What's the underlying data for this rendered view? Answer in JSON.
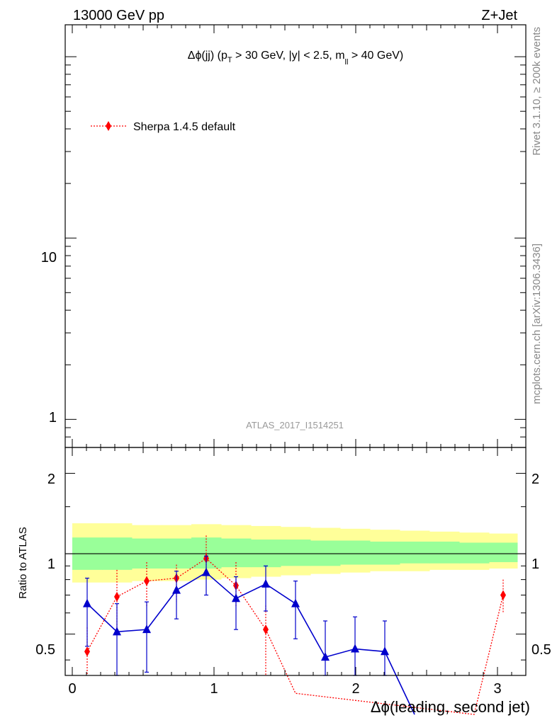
{
  "header": {
    "left": "13000 GeV pp",
    "right": "Z+Jet"
  },
  "side_labels": {
    "rivet": "Rivet 3.1.10, ≥ 200k events",
    "mcplots": "mcplots.cern.ch [arXiv:1306.3436]"
  },
  "main_panel": {
    "title_prefix": "Δϕ(jj) (p",
    "title_sub_T": "T",
    "title_mid": " > 30 GeV, |y| < 2.5, m",
    "title_sub_ll": "ll",
    "title_suffix": " > 40 GeV)",
    "watermark": "ATLAS_2017_I1514251",
    "legend_label": "Sherpa 1.4.5 default",
    "y_ticks": [
      "1",
      "10"
    ]
  },
  "ratio_panel": {
    "ylabel": "Ratio to ATLAS",
    "xlabel": "Δϕ(leading, second jet)",
    "y_ticks_left": [
      "0.5",
      "1",
      "2"
    ],
    "y_ticks_right": [
      "0.5",
      "1",
      "2"
    ],
    "x_ticks": [
      "0",
      "1",
      "2",
      "3"
    ]
  },
  "colors": {
    "sherpa": "#ff0000",
    "blue_series": "#0000cc",
    "band_inner": "#99ff99",
    "band_outer": "#ffff99"
  },
  "chart_data": {
    "type": "line",
    "xlim": [
      -0.05,
      3.2
    ],
    "ratio_ylim": [
      0.35,
      2.5
    ],
    "ratio_scale": "log",
    "main_ylim": [
      0.7,
      150
    ],
    "main_scale": "log",
    "band_edges": [
      0,
      0.21,
      0.42,
      0.63,
      0.84,
      1.05,
      1.26,
      1.47,
      1.68,
      1.89,
      2.1,
      2.31,
      2.52,
      2.73,
      2.94,
      3.14
    ],
    "band_inner": [
      [
        0.87,
        1.15
      ],
      [
        0.87,
        1.15
      ],
      [
        0.88,
        1.14
      ],
      [
        0.88,
        1.14
      ],
      [
        0.88,
        1.15
      ],
      [
        0.89,
        1.14
      ],
      [
        0.89,
        1.13
      ],
      [
        0.9,
        1.13
      ],
      [
        0.9,
        1.12
      ],
      [
        0.91,
        1.12
      ],
      [
        0.91,
        1.11
      ],
      [
        0.92,
        1.11
      ],
      [
        0.92,
        1.11
      ],
      [
        0.92,
        1.1
      ],
      [
        0.93,
        1.1
      ]
    ],
    "band_outer": [
      [
        0.78,
        1.3
      ],
      [
        0.78,
        1.3
      ],
      [
        0.79,
        1.28
      ],
      [
        0.79,
        1.28
      ],
      [
        0.8,
        1.29
      ],
      [
        0.81,
        1.28
      ],
      [
        0.82,
        1.27
      ],
      [
        0.83,
        1.26
      ],
      [
        0.84,
        1.25
      ],
      [
        0.85,
        1.24
      ],
      [
        0.86,
        1.23
      ],
      [
        0.86,
        1.22
      ],
      [
        0.87,
        1.21
      ],
      [
        0.87,
        1.2
      ],
      [
        0.88,
        1.19
      ]
    ],
    "series": [
      {
        "name": "Sherpa 1.4.5 default",
        "x": [
          0.105,
          0.315,
          0.525,
          0.735,
          0.945,
          1.155,
          1.365,
          1.575,
          2.835,
          3.04
        ],
        "y": [
          0.43,
          0.69,
          0.79,
          0.81,
          0.96,
          0.76,
          0.52,
          0.3,
          0.25,
          0.7
        ],
        "err_lo": [
          0.12,
          0.18,
          0.16,
          0.15,
          0.12,
          0.13,
          0.2,
          0.1,
          0.05,
          0.1
        ],
        "err_hi": [
          0.1,
          0.18,
          0.14,
          0.1,
          0.21,
          0.17,
          0.12,
          0.1,
          0.05,
          0.1
        ]
      },
      {
        "x": [
          0.105,
          0.315,
          0.525,
          0.735,
          0.945,
          1.155,
          1.365,
          1.575,
          1.785,
          1.995,
          2.205,
          2.415
        ],
        "y": [
          0.65,
          0.51,
          0.52,
          0.73,
          0.85,
          0.68,
          0.77,
          0.65,
          0.41,
          0.44,
          0.43,
          0.25
        ],
        "err_lo": [
          0.2,
          0.16,
          0.16,
          0.16,
          0.15,
          0.16,
          0.16,
          0.17,
          0.15,
          0.1,
          0.1,
          0.05
        ],
        "err_hi": [
          0.16,
          0.14,
          0.14,
          0.13,
          0.13,
          0.14,
          0.13,
          0.14,
          0.15,
          0.14,
          0.13,
          0.05
        ]
      }
    ]
  }
}
